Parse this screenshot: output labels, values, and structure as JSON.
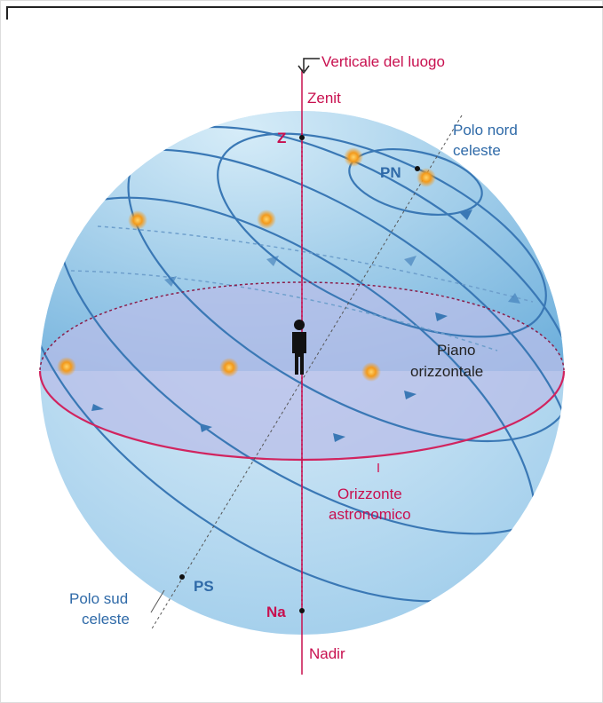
{
  "labels": {
    "vertical": "Verticale del luogo",
    "zenith": "Zenit",
    "z": "Z",
    "north_pole": [
      "Polo nord",
      "celeste"
    ],
    "pn": "PN",
    "plane": [
      "Piano",
      "orizzontale"
    ],
    "horizon": [
      "Orizzonte",
      "astronomico"
    ],
    "south_pole": [
      "Polo sud",
      "celeste"
    ],
    "ps": "PS",
    "na": "Na",
    "nadir": "Nadir"
  }
}
